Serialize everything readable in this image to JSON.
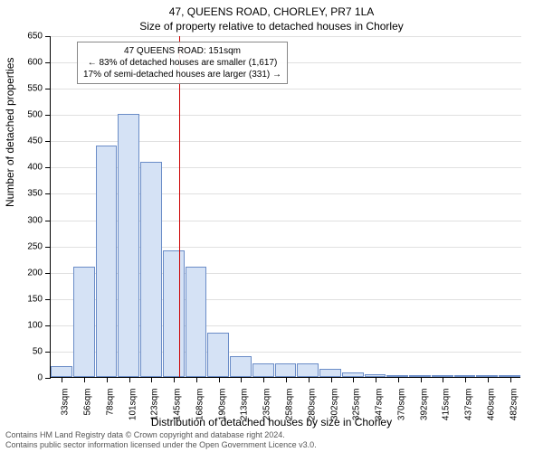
{
  "title_line1": "47, QUEENS ROAD, CHORLEY, PR7 1LA",
  "title_line2": "Size of property relative to detached houses in Chorley",
  "ylabel": "Number of detached properties",
  "xlabel": "Distribution of detached houses by size in Chorley",
  "footer_line1": "Contains HM Land Registry data © Crown copyright and database right 2024.",
  "footer_line2": "Contains public sector information licensed under the Open Government Licence v3.0.",
  "annotation": {
    "line1": "47 QUEENS ROAD: 151sqm",
    "line2": "← 83% of detached houses are smaller (1,617)",
    "line3": "17% of semi-detached houses are larger (331) →"
  },
  "chart": {
    "type": "histogram",
    "ylim": [
      0,
      650
    ],
    "ytick_step": 50,
    "reference_x": 151,
    "reference_color": "#cc0000",
    "bar_fill": "#d5e2f5",
    "bar_stroke": "#6a8cc7",
    "grid_color": "#e0e0e0",
    "background_color": "#ffffff",
    "x_categories": [
      "33sqm",
      "56sqm",
      "78sqm",
      "101sqm",
      "123sqm",
      "145sqm",
      "168sqm",
      "190sqm",
      "213sqm",
      "235sqm",
      "258sqm",
      "280sqm",
      "302sqm",
      "325sqm",
      "347sqm",
      "370sqm",
      "392sqm",
      "415sqm",
      "437sqm",
      "460sqm",
      "482sqm"
    ],
    "x_numeric": [
      33,
      56,
      78,
      101,
      123,
      145,
      168,
      190,
      213,
      235,
      258,
      280,
      302,
      325,
      347,
      370,
      392,
      415,
      437,
      460,
      482
    ],
    "values": [
      20,
      210,
      440,
      500,
      410,
      240,
      210,
      85,
      40,
      25,
      25,
      25,
      15,
      9,
      6,
      4,
      3,
      2,
      2,
      2,
      2
    ],
    "xlim_data": [
      22,
      495
    ],
    "title_fontsize": 12,
    "label_fontsize": 12,
    "tick_fontsize": 10,
    "annotation_fontsize": 10
  }
}
